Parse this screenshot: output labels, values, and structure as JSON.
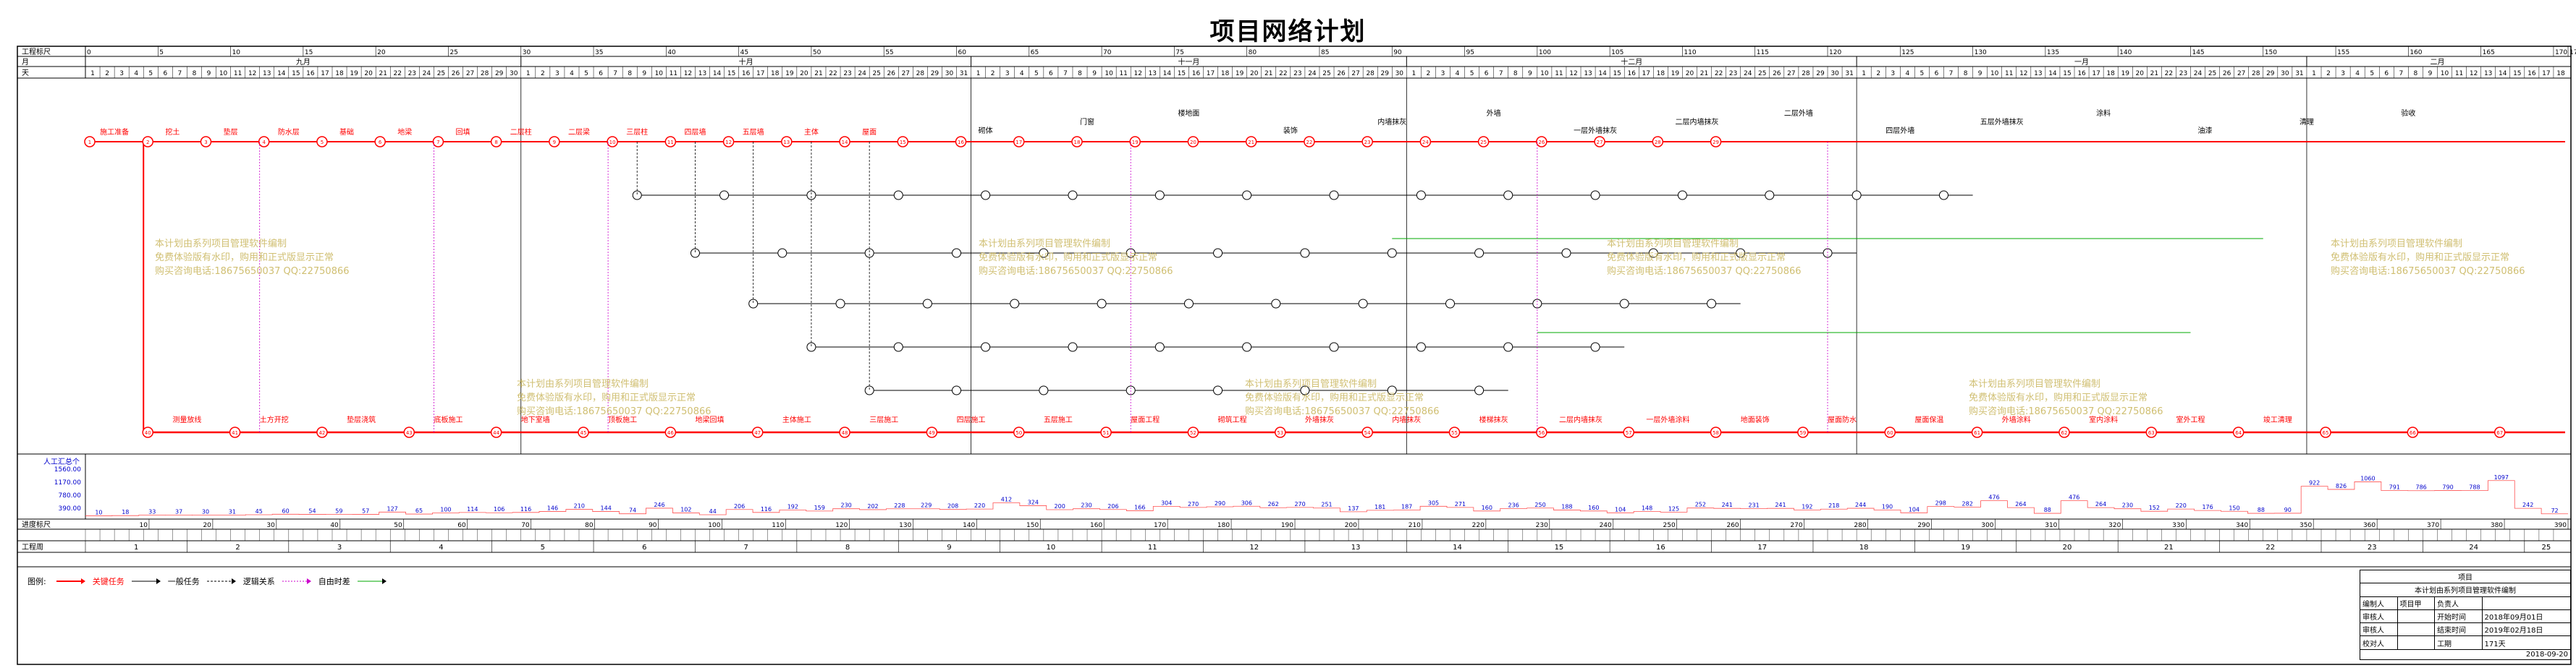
{
  "title": "项目网络计划",
  "header": {
    "row1_label": "工程标尺",
    "row2_label": "月",
    "row3_label": "天",
    "month_labels": [
      "九月",
      "十月",
      "十一月",
      "十二月",
      "一月",
      "二月"
    ],
    "ruler_ticks": [
      "0",
      "5",
      "10",
      "15",
      "20",
      "25",
      "30",
      "35",
      "40",
      "45",
      "50",
      "55",
      "60",
      "65",
      "70",
      "75",
      "80",
      "85",
      "90",
      "95",
      "100",
      "105",
      "110",
      "115",
      "120",
      "125",
      "130",
      "135",
      "140",
      "145",
      "150",
      "155",
      "160",
      "165",
      "170",
      "171"
    ]
  },
  "resource": {
    "label": "人工汇总个",
    "y_ticks": [
      "1560.00",
      "1170.00",
      "780.00",
      "390.00"
    ],
    "values": [
      10,
      18,
      33,
      37,
      30,
      31,
      45,
      60,
      54,
      59,
      57,
      127,
      65,
      100,
      114,
      106,
      116,
      146,
      210,
      144,
      74,
      246,
      102,
      44,
      206,
      116,
      192,
      159,
      230,
      202,
      228,
      229,
      208,
      220,
      412,
      324,
      200,
      230,
      206,
      166,
      304,
      270,
      290,
      306,
      262,
      270,
      251,
      137,
      181,
      187,
      305,
      271,
      160,
      236,
      250,
      188,
      160,
      104,
      148,
      125,
      252,
      241,
      231,
      241,
      192,
      218,
      244,
      190,
      104,
      298,
      282,
      476,
      264,
      88,
      476,
      264,
      230,
      152,
      220,
      176,
      150,
      88,
      90,
      922,
      826,
      1060,
      791,
      786,
      790,
      788,
      1097,
      242,
      72
    ]
  },
  "bottom": {
    "progress_label": "进度标尺",
    "week_label": "工程周",
    "progress_ticks": [
      "10",
      "20",
      "30",
      "40",
      "50",
      "60",
      "70",
      "80",
      "90",
      "100",
      "110",
      "120",
      "130",
      "140",
      "150",
      "160",
      "170",
      "180",
      "190",
      "200",
      "210",
      "220",
      "230",
      "240",
      "250",
      "260",
      "270",
      "280",
      "290",
      "300",
      "310",
      "320",
      "330",
      "340",
      "350",
      "360",
      "370",
      "380",
      "390"
    ],
    "weeks": [
      "1",
      "2",
      "3",
      "4",
      "5",
      "6",
      "7",
      "8",
      "9",
      "10",
      "11",
      "12",
      "13",
      "14",
      "15",
      "16",
      "17",
      "18",
      "19",
      "20",
      "21",
      "22",
      "23",
      "24",
      "25"
    ]
  },
  "legend": {
    "label": "图例:",
    "critical": "关键任务",
    "normal": "一般任务",
    "logic": "逻辑关系",
    "float": "自由时差"
  },
  "watermark": {
    "line1": "本计划由系列项目管理软件编制",
    "line2": "免费体验版有水印，购用和正式版显示正常",
    "line3": "购买咨询电话:18675650037 QQ:22750866"
  },
  "tasks_top": [
    "施工准备",
    "挖土",
    "垫层",
    "防水层",
    "基础",
    "地梁",
    "回填",
    "二层柱",
    "二层梁",
    "三层柱",
    "四层墙",
    "五层墙",
    "主体",
    "屋面",
    "砌体",
    "门窗",
    "楼地面",
    "装饰",
    "内墙抹灰",
    "外墙",
    "一层外墙抹灰",
    "二层内墙抹灰",
    "二层外墙",
    "四层外墙",
    "五层外墙抹灰",
    "涂料",
    "油漆",
    "清理",
    "验收"
  ],
  "tasks_bottom": [
    "测量放线",
    "土方开挖",
    "垫层浇筑",
    "底板施工",
    "地下室墙",
    "顶板施工",
    "地梁回填",
    "主体施工",
    "三层施工",
    "四层施工",
    "五层施工",
    "屋面工程",
    "砌筑工程",
    "外墙抹灰",
    "内墙抹灰",
    "楼梯抹灰",
    "二层内墙抹灰",
    "一层外墙涂料",
    "地面装饰",
    "屋面防水",
    "屋面保温",
    "外墙涂料",
    "室内涂料",
    "室外工程",
    "竣工清理"
  ],
  "info": {
    "title": "项目",
    "subtitle": "本计划由系列项目管理软件编制",
    "rows": [
      [
        "编制人",
        "项目甲",
        "负责人",
        ""
      ],
      [
        "审核人",
        "",
        "开始时间",
        "2018年09月01日"
      ],
      [
        "审核人",
        "",
        "结束时间",
        "2019年02月18日"
      ],
      [
        "校对人",
        "",
        "工期",
        "171天"
      ]
    ],
    "date": "2018-09-20"
  }
}
